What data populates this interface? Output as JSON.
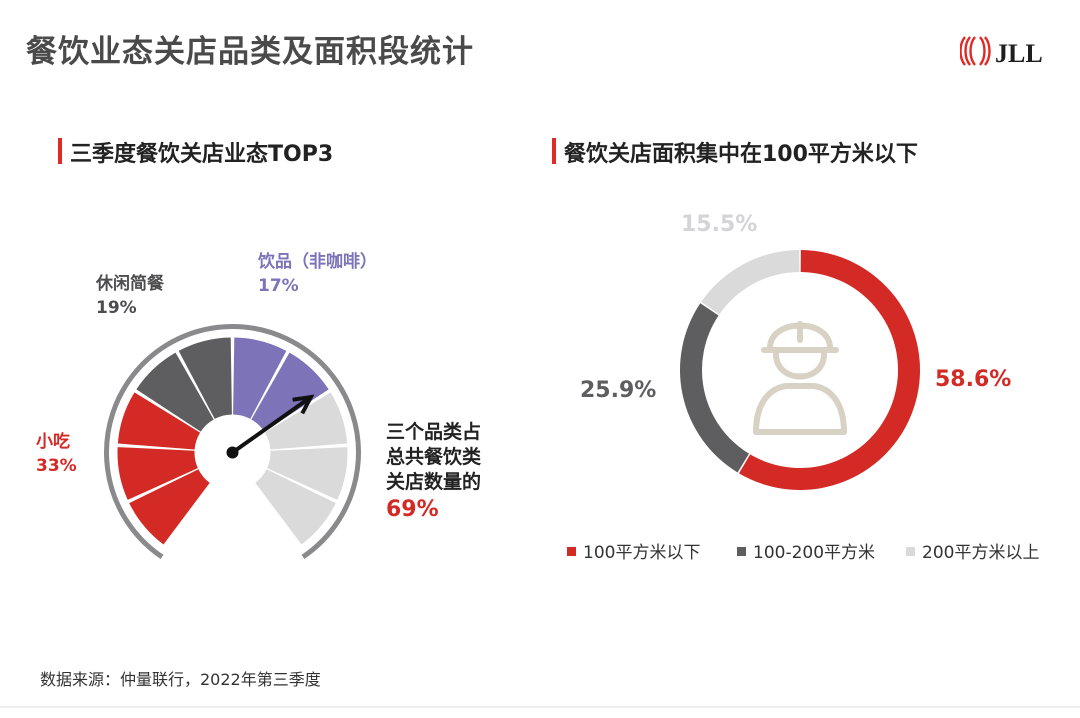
{
  "title": "餐饮业态关店品类及面积段统计",
  "brand": {
    "name": "JLL",
    "color": "#e02a26"
  },
  "colors": {
    "red": "#d42a26",
    "dark": "#5e5e60",
    "light": "#dadadb",
    "purple": "#7c73b8"
  },
  "left": {
    "heading": "三季度餐饮关店业态TOP3",
    "categories": [
      {
        "name": "小吃",
        "pct": "33%"
      },
      {
        "name": "休闲简餐",
        "pct": "19%"
      },
      {
        "name": "饮品（非咖啡）",
        "pct": "17%"
      }
    ],
    "summary_lines": [
      "三个品类占",
      "总共餐饮类",
      "关店数量的"
    ],
    "summary_value": "69%"
  },
  "right": {
    "heading": "餐饮关店面积集中在100平方米以下",
    "icon": "worker-helmet-icon",
    "legend": [
      "100平方米以下",
      "100-200平方米",
      "200平方米以上"
    ]
  },
  "chart_data": [
    {
      "type": "pie",
      "subtype": "gauge",
      "title": "三季度餐饮关店业态TOP3",
      "categories": [
        "小吃",
        "休闲简餐",
        "饮品（非咖啡）"
      ],
      "values": [
        33,
        19,
        17
      ],
      "labels": [
        "33%",
        "19%",
        "17%"
      ],
      "total_label": "69%"
    },
    {
      "type": "pie",
      "subtype": "donut",
      "title": "餐饮关店面积集中在100平方米以下",
      "categories": [
        "100平方米以下",
        "100-200平方米",
        "200平方米以上"
      ],
      "values": [
        58.6,
        25.9,
        15.5
      ],
      "labels": [
        "58.6%",
        "25.9%",
        "15.5%"
      ],
      "legend": "bottom"
    }
  ],
  "source": "数据来源：仲量联行，2022年第三季度"
}
